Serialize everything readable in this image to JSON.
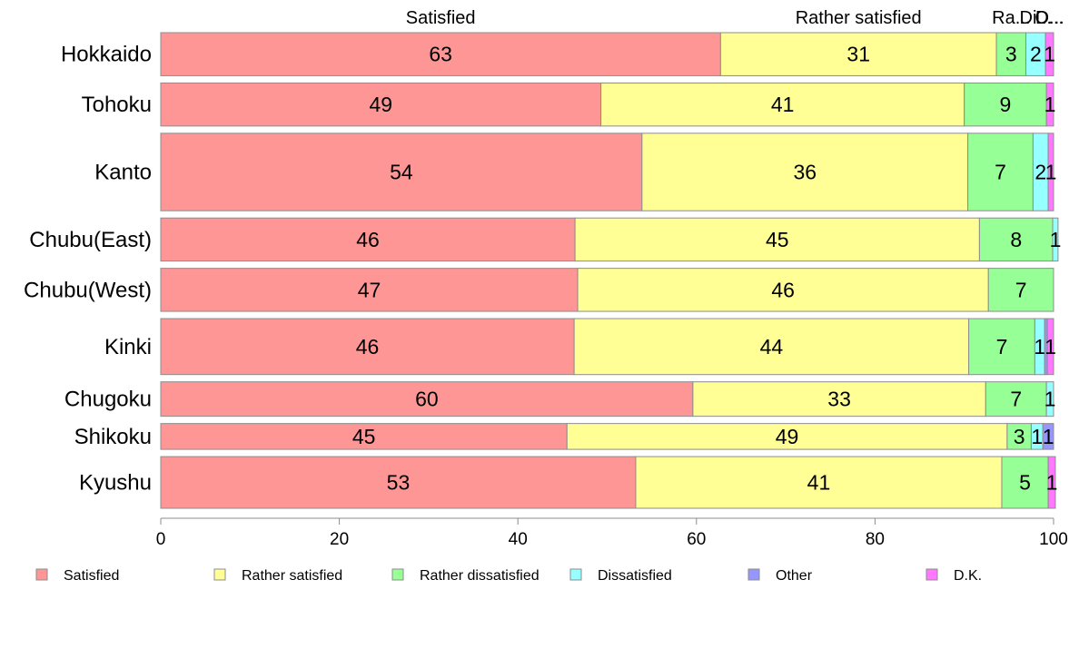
{
  "chart_data": {
    "type": "bar",
    "orientation": "horizontal",
    "stacked": true,
    "categories": [
      "Hokkaido",
      "Tohoku",
      "Kanto",
      "Chubu(East)",
      "Chubu(West)",
      "Kinki",
      "Chugoku",
      "Shikoku",
      "Kyushu"
    ],
    "bar_weights": [
      1.0,
      1.0,
      1.8,
      1.0,
      1.0,
      1.3,
      0.8,
      0.6,
      1.2
    ],
    "series": [
      {
        "name": "Satisfied",
        "color": "#FF9696",
        "values": [
          62.7,
          49.3,
          53.9,
          46.4,
          46.7,
          46.3,
          59.6,
          45.5,
          53.2
        ],
        "labels": [
          "63",
          "49",
          "54",
          "46",
          "47",
          "46",
          "60",
          "45",
          "53"
        ]
      },
      {
        "name": "Rather satisfied",
        "color": "#FFFF96",
        "values": [
          30.9,
          40.7,
          36.5,
          45.3,
          46.0,
          44.2,
          32.8,
          49.3,
          41.0
        ],
        "labels": [
          "31",
          "41",
          "36",
          "45",
          "46",
          "44",
          "33",
          "49",
          "41"
        ]
      },
      {
        "name": "Rather dissatisfied",
        "color": "#96FF96",
        "values": [
          3.3,
          9.2,
          7.3,
          8.2,
          7.3,
          7.4,
          6.8,
          2.7,
          5.2
        ],
        "labels": [
          "3",
          "9",
          "7",
          "8",
          "7",
          "7",
          "7",
          "3",
          "5"
        ]
      },
      {
        "name": "Dissatisfied",
        "color": "#96FFFF",
        "values": [
          2.2,
          0.0,
          1.7,
          0.6,
          0.0,
          1.1,
          0.8,
          1.3,
          0.0
        ],
        "labels": [
          "2",
          "",
          "2",
          "1",
          "",
          "1",
          "1",
          "1",
          ""
        ]
      },
      {
        "name": "Other",
        "color": "#9696FF",
        "values": [
          0.0,
          0.0,
          0.0,
          0.0,
          0.0,
          0.3,
          0.0,
          1.2,
          0.0
        ],
        "labels": [
          "",
          "",
          "",
          "",
          "",
          "",
          "",
          "1",
          ""
        ]
      },
      {
        "name": "D.K.",
        "color": "#FF78FF",
        "values": [
          0.9,
          0.8,
          0.6,
          0.0,
          0.0,
          0.7,
          0.0,
          0.0,
          0.8
        ],
        "labels": [
          "1",
          "1",
          "1",
          "",
          "",
          "1",
          "",
          "",
          "1"
        ]
      }
    ],
    "top_labels": [
      "Satisfied",
      "Rather satisfied",
      "Ra...",
      "Di...",
      "O...",
      "D..."
    ],
    "xlim": [
      0,
      100
    ],
    "xticks": [
      0,
      20,
      40,
      60,
      80,
      100
    ],
    "xlabel": "",
    "ylabel": "",
    "title": "",
    "grid": false,
    "legend_position": "bottom"
  }
}
